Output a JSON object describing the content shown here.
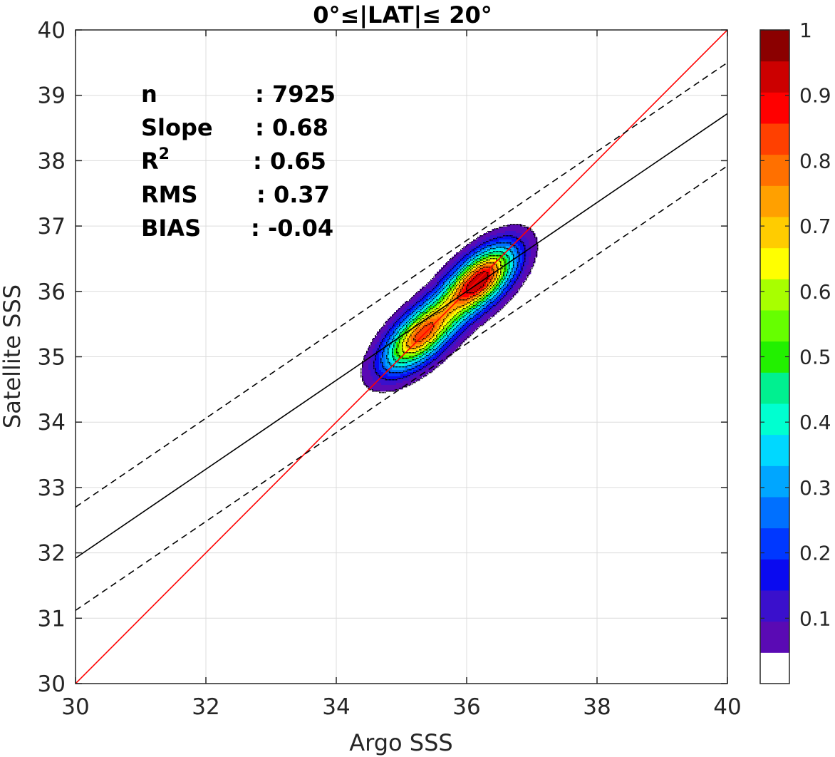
{
  "chart_data": {
    "type": "contour",
    "title": "0°≤|LAT|≤ 20°",
    "xlabel": "Argo SSS",
    "ylabel": "Satellite SSS",
    "xlim": [
      30,
      40
    ],
    "ylim": [
      30,
      40
    ],
    "xticks": [
      30,
      32,
      34,
      36,
      38,
      40
    ],
    "yticks": [
      30,
      31,
      32,
      33,
      34,
      35,
      36,
      37,
      38,
      39,
      40
    ],
    "grid": true,
    "stats": [
      {
        "label": "n",
        "value": ": 7925"
      },
      {
        "label": "Slope",
        "value": ": 0.68"
      },
      {
        "label": "R",
        "sup": "2",
        "value": ": 0.65"
      },
      {
        "label": "RMS",
        "value": ": 0.37"
      },
      {
        "label": "BIAS",
        "value": ": -0.04"
      }
    ],
    "lines": [
      {
        "name": "identity",
        "style": "solid",
        "color": "#ff0000",
        "slope": 1.0,
        "intercept": 0.0
      },
      {
        "name": "regression",
        "style": "solid",
        "color": "#000000",
        "slope": 0.68,
        "intercept": 11.52
      },
      {
        "name": "upper-bound",
        "style": "dashed",
        "color": "#000000",
        "slope": 0.68,
        "intercept": 12.3
      },
      {
        "name": "lower-bound",
        "style": "dashed",
        "color": "#000000",
        "slope": 0.68,
        "intercept": 10.72
      }
    ],
    "density": {
      "centers": [
        {
          "x": 35.3,
          "y": 35.33,
          "peak": 0.87,
          "sx": 0.48,
          "sy": 0.22
        },
        {
          "x": 36.2,
          "y": 36.17,
          "peak": 1.0,
          "sx": 0.45,
          "sy": 0.22
        }
      ],
      "corr_angle_deg": 43
    },
    "colorbar": {
      "ticks": [
        0.1,
        0.2,
        0.3,
        0.4,
        0.5,
        0.6,
        0.7,
        0.8,
        0.9,
        1
      ],
      "tick_labels": [
        "0.1",
        "0.2",
        "0.3",
        "0.4",
        "0.5",
        "0.6",
        "0.7",
        "0.8",
        "0.9",
        "1"
      ],
      "levels": [
        0,
        0.05,
        0.1,
        0.15,
        0.2,
        0.25,
        0.3,
        0.35,
        0.4,
        0.45,
        0.5,
        0.55,
        0.6,
        0.65,
        0.7,
        0.75,
        0.8,
        0.85,
        0.9,
        0.95,
        1.0
      ],
      "colors": [
        "#ffffff",
        "#5a0ab4",
        "#3a10cc",
        "#0a0af0",
        "#0038ff",
        "#0070ff",
        "#00a6ff",
        "#00d8ff",
        "#00ffd0",
        "#00f090",
        "#22f000",
        "#66ff00",
        "#a8ff00",
        "#ffff00",
        "#ffcc00",
        "#ffa000",
        "#ff7000",
        "#ff4000",
        "#ff0000",
        "#cc0000",
        "#8b0000"
      ]
    }
  }
}
